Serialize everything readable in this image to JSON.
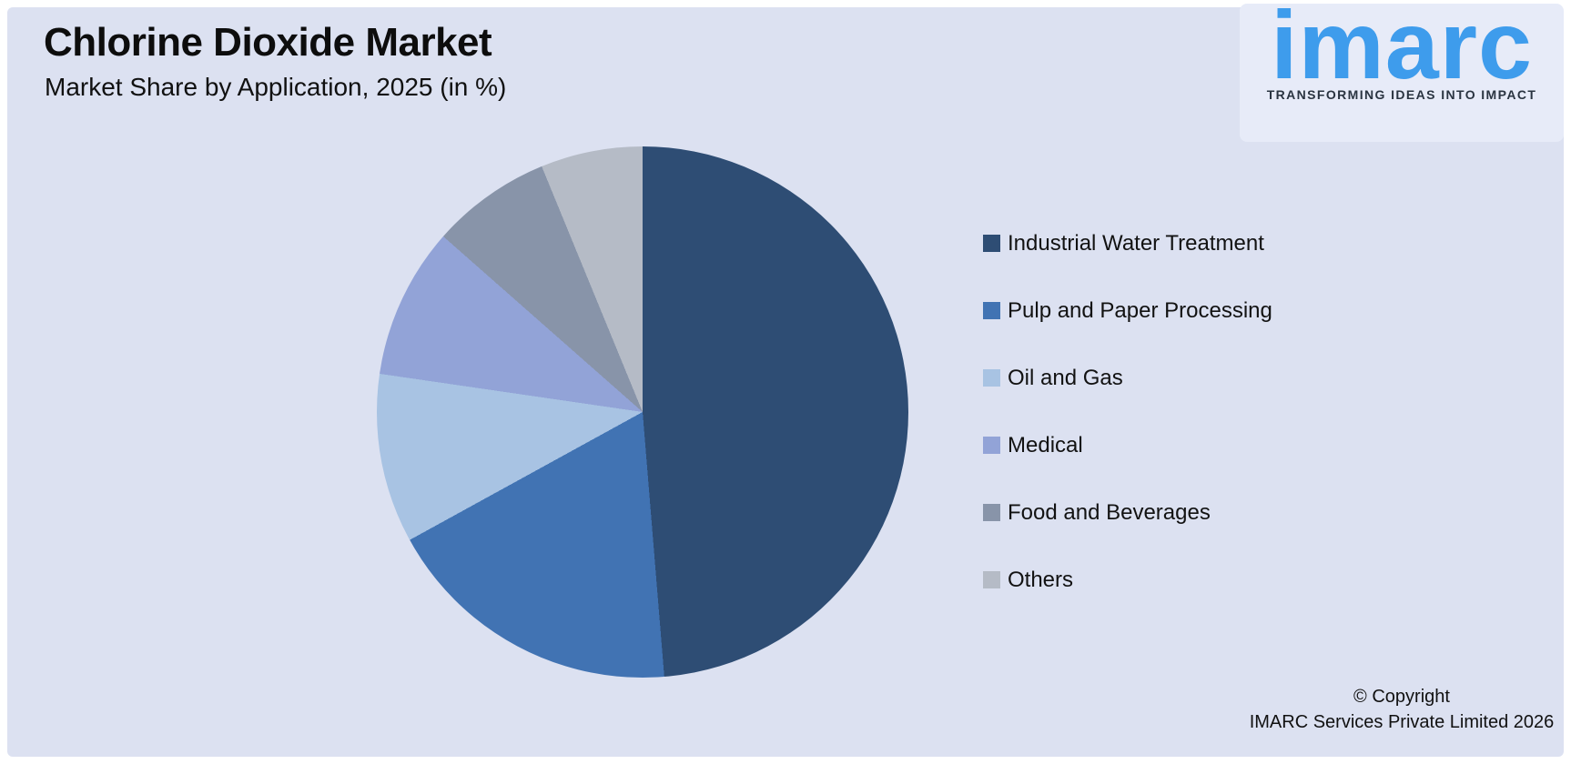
{
  "page": {
    "background_color": "#ffffff",
    "panel_color": "#dce1f1"
  },
  "header": {
    "title": "Chlorine Dioxide Market",
    "subtitle": "Market Share by Application, 2025 (in %)"
  },
  "logo": {
    "wordmark": "imarc",
    "tagline": "TRANSFORMING IDEAS INTO IMPACT",
    "wordmark_color": "#3e9cec",
    "tagline_color": "#2a3441"
  },
  "chart_data": {
    "type": "pie",
    "title": "Chlorine Dioxide Market",
    "subtitle": "Market Share by Application, 2025 (in %)",
    "unit": "%",
    "categories": [
      "Industrial Water Treatment",
      "Pulp and Paper Processing",
      "Oil and Gas",
      "Medical",
      "Food and Beverages",
      "Others"
    ],
    "values": [
      48.7,
      18.3,
      10.3,
      9.2,
      7.3,
      6.2
    ],
    "colors": [
      "#2e4d74",
      "#4173b3",
      "#a8c3e3",
      "#92a3d7",
      "#8894a9",
      "#b5bbc6"
    ],
    "start_angle_deg": 0,
    "direction": "clockwise",
    "legend_position": "right",
    "data_labels": false,
    "values_note": "values estimated from slice angles; no numeric labels shown in chart"
  },
  "footer": {
    "copyright_line1": "© Copyright",
    "copyright_line2": "IMARC Services Private Limited 2026"
  }
}
